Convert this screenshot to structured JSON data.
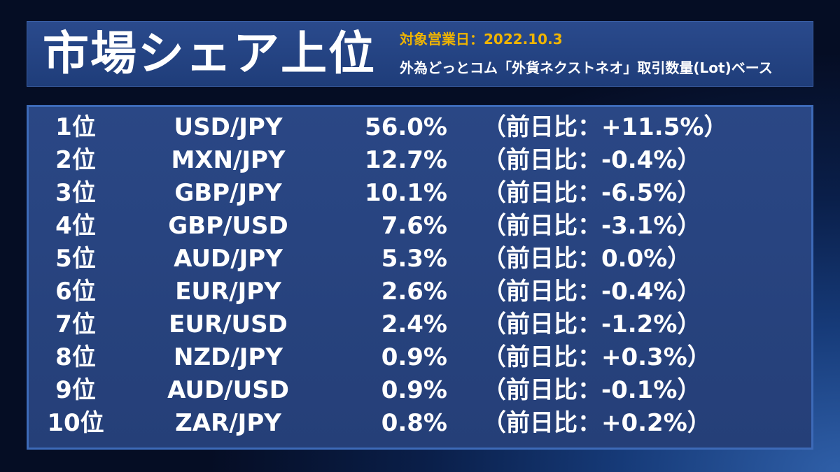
{
  "header": {
    "title": "市場シェア上位",
    "date_line": "対象営業日：2022.10.3",
    "basis_line": "外為どっとコム「外貨ネクストネオ」取引数量(Lot)ベース"
  },
  "colors": {
    "date_accent": "#f0b400",
    "panel_border": "#3d6ab8"
  },
  "rows": [
    {
      "rank": "1位",
      "pair": "USD/JPY",
      "share": "56.0%",
      "change": "（前日比：+11.5%）"
    },
    {
      "rank": "2位",
      "pair": "MXN/JPY",
      "share": "12.7%",
      "change": "（前日比：-0.4%）"
    },
    {
      "rank": "3位",
      "pair": "GBP/JPY",
      "share": "10.1%",
      "change": "（前日比：-6.5%）"
    },
    {
      "rank": "4位",
      "pair": "GBP/USD",
      "share": "7.6%",
      "change": "（前日比：-3.1%）"
    },
    {
      "rank": "5位",
      "pair": "AUD/JPY",
      "share": "5.3%",
      "change": "（前日比：0.0%）"
    },
    {
      "rank": "6位",
      "pair": "EUR/JPY",
      "share": "2.6%",
      "change": "（前日比：-0.4%）"
    },
    {
      "rank": "7位",
      "pair": "EUR/USD",
      "share": "2.4%",
      "change": "（前日比：-1.2%）"
    },
    {
      "rank": "8位",
      "pair": "NZD/JPY",
      "share": "0.9%",
      "change": "（前日比：+0.3%）"
    },
    {
      "rank": "9位",
      "pair": "AUD/USD",
      "share": "0.9%",
      "change": "（前日比：-0.1%）"
    },
    {
      "rank": "10位",
      "pair": "ZAR/JPY",
      "share": "0.8%",
      "change": "（前日比：+0.2%）"
    }
  ]
}
